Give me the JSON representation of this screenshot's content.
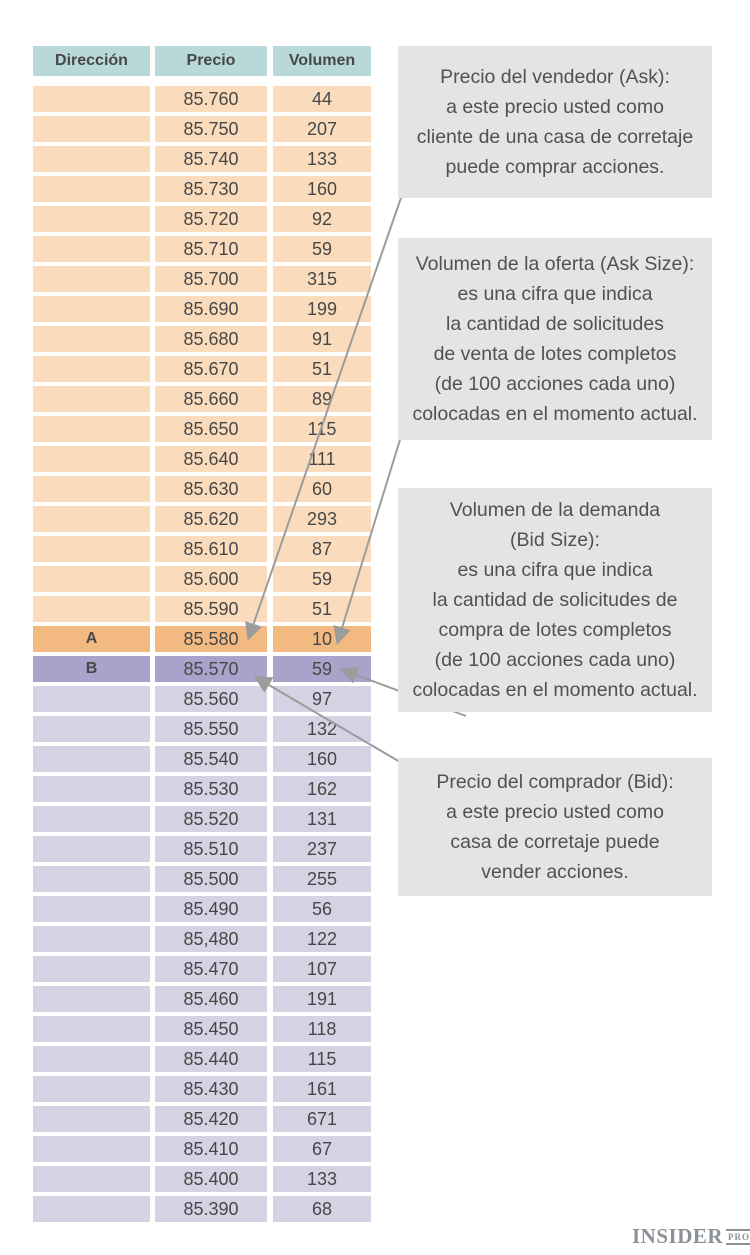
{
  "colors": {
    "header-bg": "#b9d8d9",
    "ask-bg": "#fadcbd",
    "ask-best-bg": "#f2ba80",
    "bid-best-bg": "#a9a3cc",
    "bid-bg": "#d6d2e4",
    "note-bg": "#e4e4e4",
    "text": "#474747",
    "note-text": "#515151",
    "arrow": "#9c9c9c",
    "logo": "#8b9197"
  },
  "table": {
    "headers": [
      "Dirección",
      "Precio",
      "Volumen"
    ],
    "rows": [
      {
        "dir": "",
        "price": "85.760",
        "vol": "44",
        "type": "ask"
      },
      {
        "dir": "",
        "price": "85.750",
        "vol": "207",
        "type": "ask"
      },
      {
        "dir": "",
        "price": "85.740",
        "vol": "133",
        "type": "ask"
      },
      {
        "dir": "",
        "price": "85.730",
        "vol": "160",
        "type": "ask"
      },
      {
        "dir": "",
        "price": "85.720",
        "vol": "92",
        "type": "ask"
      },
      {
        "dir": "",
        "price": "85.710",
        "vol": "59",
        "type": "ask"
      },
      {
        "dir": "",
        "price": "85.700",
        "vol": "315",
        "type": "ask"
      },
      {
        "dir": "",
        "price": "85.690",
        "vol": "199",
        "type": "ask"
      },
      {
        "dir": "",
        "price": "85.680",
        "vol": "91",
        "type": "ask"
      },
      {
        "dir": "",
        "price": "85.670",
        "vol": "51",
        "type": "ask"
      },
      {
        "dir": "",
        "price": "85.660",
        "vol": "89",
        "type": "ask"
      },
      {
        "dir": "",
        "price": "85.650",
        "vol": "115",
        "type": "ask"
      },
      {
        "dir": "",
        "price": "85.640",
        "vol": "111",
        "type": "ask"
      },
      {
        "dir": "",
        "price": "85.630",
        "vol": "60",
        "type": "ask"
      },
      {
        "dir": "",
        "price": "85.620",
        "vol": "293",
        "type": "ask"
      },
      {
        "dir": "",
        "price": "85.610",
        "vol": "87",
        "type": "ask"
      },
      {
        "dir": "",
        "price": "85.600",
        "vol": "59",
        "type": "ask"
      },
      {
        "dir": "",
        "price": "85.590",
        "vol": "51",
        "type": "ask"
      },
      {
        "dir": "A",
        "price": "85.580",
        "vol": "10",
        "type": "ask-best"
      },
      {
        "dir": "B",
        "price": "85.570",
        "vol": "59",
        "type": "bid-best"
      },
      {
        "dir": "",
        "price": "85.560",
        "vol": "97",
        "type": "bid"
      },
      {
        "dir": "",
        "price": "85.550",
        "vol": "132",
        "type": "bid"
      },
      {
        "dir": "",
        "price": "85.540",
        "vol": "160",
        "type": "bid"
      },
      {
        "dir": "",
        "price": "85.530",
        "vol": "162",
        "type": "bid"
      },
      {
        "dir": "",
        "price": "85.520",
        "vol": "131",
        "type": "bid"
      },
      {
        "dir": "",
        "price": "85.510",
        "vol": "237",
        "type": "bid"
      },
      {
        "dir": "",
        "price": "85.500",
        "vol": "255",
        "type": "bid"
      },
      {
        "dir": "",
        "price": "85.490",
        "vol": "56",
        "type": "bid"
      },
      {
        "dir": "",
        "price": "85,480",
        "vol": "122",
        "type": "bid"
      },
      {
        "dir": "",
        "price": "85.470",
        "vol": "107",
        "type": "bid"
      },
      {
        "dir": "",
        "price": "85.460",
        "vol": "191",
        "type": "bid"
      },
      {
        "dir": "",
        "price": "85.450",
        "vol": "118",
        "type": "bid"
      },
      {
        "dir": "",
        "price": "85.440",
        "vol": "115",
        "type": "bid"
      },
      {
        "dir": "",
        "price": "85.430",
        "vol": "161",
        "type": "bid"
      },
      {
        "dir": "",
        "price": "85.420",
        "vol": "671",
        "type": "bid"
      },
      {
        "dir": "",
        "price": "85.410",
        "vol": "67",
        "type": "bid"
      },
      {
        "dir": "",
        "price": "85.400",
        "vol": "133",
        "type": "bid"
      },
      {
        "dir": "",
        "price": "85.390",
        "vol": "68",
        "type": "bid"
      }
    ]
  },
  "annotations": [
    {
      "target": "price-85.580-ask",
      "lines": [
        "Precio del vendedor (Ask):",
        "a este precio usted como",
        "cliente de una casa de corretaje",
        "puede comprar acciones."
      ]
    },
    {
      "target": "volume-10-ask-size",
      "lines": [
        "Volumen de la oferta (Ask Size):",
        "es una cifra que indica",
        "la cantidad de solicitudes",
        "de venta de lotes completos",
        "(de 100 acciones cada uno)",
        "colocadas en el momento actual."
      ]
    },
    {
      "target": "volume-59-bid-size",
      "lines": [
        "Volumen de la demanda",
        "(Bid Size):",
        "es una cifra que indica",
        "la cantidad de solicitudes de",
        "compra de lotes completos",
        "(de 100 acciones cada uno)",
        "colocadas en el momento actual."
      ]
    },
    {
      "target": "price-85.570-bid",
      "lines": [
        "Precio del comprador (Bid):",
        "a este precio usted como",
        "casa de corretaje puede",
        "vender acciones."
      ]
    }
  ],
  "logo": {
    "main": "INSIDER",
    "sub": "PRO"
  }
}
